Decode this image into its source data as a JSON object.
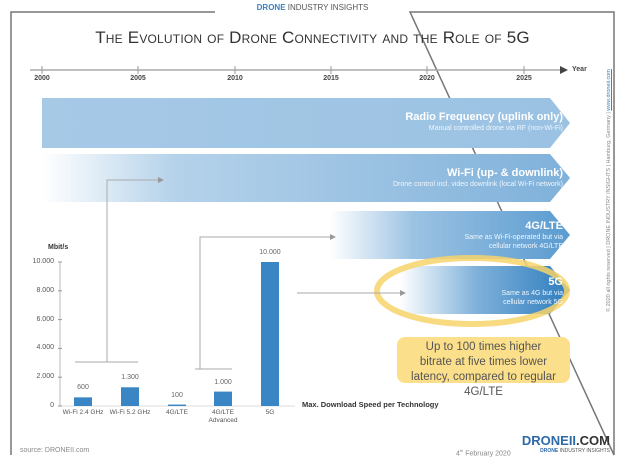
{
  "brand": {
    "strong": "DRONE",
    "rest": " INDUSTRY INSIGHTS"
  },
  "title": "The Evolution of Drone Connectivity and the Role of 5G",
  "timeline": {
    "label": "Year",
    "ticks": [
      "2000",
      "2005",
      "2010",
      "2015",
      "2020",
      "2025"
    ]
  },
  "bands": [
    {
      "title": "Radio Frequency (uplink only)",
      "sub": "Manual controlled drone via RF (non-Wi-Fi)"
    },
    {
      "title": "Wi-Fi (up- & downlink)",
      "sub": "Drone control incl. video downlink (local Wi-Fi network)"
    },
    {
      "title": "4G/LTE",
      "sub": "Same as Wi-Fi-operated but via",
      "sub2": "cellular network 4G/LTE"
    },
    {
      "title": "5G",
      "sub": "Same as 4G but via",
      "sub2": "cellular network 5G"
    }
  ],
  "note": "Up to 100 times higher bitrate at five times lower latency, compared to regular 4G/LTE",
  "colors": {
    "band": "#3a86c4",
    "highlight": "#f7d46a",
    "note": "#fbdf8a",
    "bar": "#3a86c4"
  },
  "chart_data": {
    "type": "bar",
    "ylabel": "Mbit/s",
    "xlabel": "Max. Download Speed per Technology",
    "ylim": [
      0,
      10000
    ],
    "yticks": [
      "0",
      "2.000",
      "4.000",
      "6.000",
      "8.000",
      "10.000"
    ],
    "categories": [
      "Wi-Fi 2.4 GHz",
      "Wi-Fi 5.2 GHz",
      "4G/LTE",
      "4G/LTE Advanced",
      "5G"
    ],
    "values": [
      600,
      1300,
      100,
      1000,
      10000
    ],
    "labels": [
      "600",
      "1.300",
      "100",
      "1.000",
      "10.000"
    ]
  },
  "footer": {
    "source": "source: DRONEII.com",
    "date_sup": "th",
    "date_day": "4",
    "date_rest": " February 2020",
    "logo_main": "DRONEII",
    "logo_dom": ".COM",
    "logo_sub_strong": "DRONE",
    "logo_sub_rest": " INDUSTRY INSIGHTS",
    "copyright": "© 2020 all rights reserved | DRONE INDUSTRY INSIGHTS | Hamburg, Germany | ",
    "url": "www.droneii.com"
  }
}
